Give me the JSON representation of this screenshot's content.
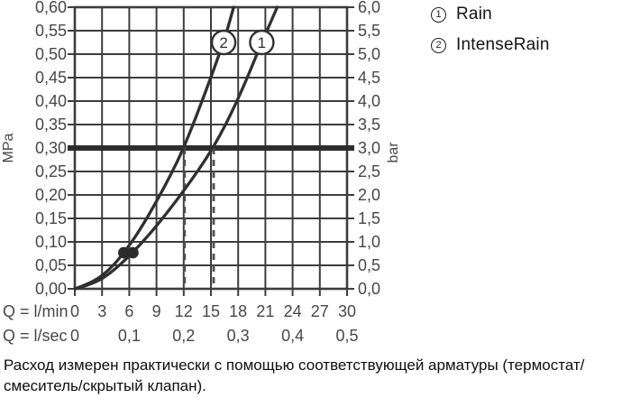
{
  "colors": {
    "grid": "#3d3d3d",
    "curve": "#303030",
    "reference_line": "#2d2d2d",
    "dashed_guide": "#4f4f4f",
    "axis_text": "#474747",
    "dot": "#2b2b2b",
    "background": "#ffffff"
  },
  "legend": {
    "items": [
      {
        "marker": "1",
        "label": "Rain"
      },
      {
        "marker": "2",
        "label": "IntenseRain"
      }
    ]
  },
  "caption": "Расход измерен практически с помощью соответствующей арматуры (термостат/смеситель/скрытый клапан).",
  "chart_data": {
    "type": "line",
    "title": "",
    "grid": true,
    "x_axis": {
      "primary_label": "Q = l/min",
      "primary_ticks": [
        0,
        3,
        6,
        9,
        12,
        15,
        18,
        21,
        24,
        27,
        30
      ],
      "secondary_label": "Q = l/sec",
      "secondary_ticks": [
        {
          "value": "0",
          "at_lmin": 0
        },
        {
          "value": "0,1",
          "at_lmin": 6
        },
        {
          "value": "0,2",
          "at_lmin": 12
        },
        {
          "value": "0,3",
          "at_lmin": 18
        },
        {
          "value": "0,4",
          "at_lmin": 24
        },
        {
          "value": "0,5",
          "at_lmin": 30
        }
      ],
      "min": 0,
      "max": 30,
      "grid_step": 3
    },
    "y_axis_left": {
      "label": "MPa",
      "min": 0,
      "max": 0.6,
      "grid_step": 0.05,
      "tick_labels": [
        "0,00",
        "0,05",
        "0,10",
        "0,15",
        "0,20",
        "0,25",
        "0,30",
        "0,35",
        "0,40",
        "0,45",
        "0,50",
        "0,55",
        "0,60"
      ]
    },
    "y_axis_right": {
      "label": "bar",
      "min": 0,
      "max": 6,
      "grid_step": 0.5,
      "tick_labels": [
        "0,0",
        "0,5",
        "1,0",
        "1,5",
        "2,0",
        "2,5",
        "3,0",
        "3,5",
        "4,0",
        "4,5",
        "5,0",
        "5,5",
        "6,0"
      ]
    },
    "reference_line_mpa": 0.3,
    "dashed_guides_lmin": [
      12.1,
      15.3
    ],
    "series": [
      {
        "id": "1",
        "name": "Rain",
        "points_lmin_mpa": [
          [
            0,
            0
          ],
          [
            2,
            0.01
          ],
          [
            4,
            0.034
          ],
          [
            6.4,
            0.077
          ],
          [
            9,
            0.133
          ],
          [
            12,
            0.208
          ],
          [
            15.3,
            0.3
          ],
          [
            18,
            0.403
          ],
          [
            20.6,
            0.525
          ],
          [
            22.3,
            0.6
          ]
        ],
        "dot_lmin_mpa": [
          6.4,
          0.077
        ],
        "label_circle_at": [
          20.6,
          0.525
        ],
        "crosses_reference_at_lmin": 15.3
      },
      {
        "id": "2",
        "name": "IntenseRain",
        "points_lmin_mpa": [
          [
            0,
            0
          ],
          [
            2,
            0.013
          ],
          [
            4,
            0.044
          ],
          [
            5.4,
            0.077
          ],
          [
            7,
            0.12
          ],
          [
            9,
            0.186
          ],
          [
            10.5,
            0.24
          ],
          [
            12,
            0.3
          ],
          [
            14,
            0.398
          ],
          [
            16.4,
            0.525
          ],
          [
            17.5,
            0.6
          ]
        ],
        "dot_lmin_mpa": [
          5.4,
          0.077
        ],
        "label_circle_at": [
          16.4,
          0.525
        ],
        "crosses_reference_at_lmin": 12.1
      }
    ]
  }
}
